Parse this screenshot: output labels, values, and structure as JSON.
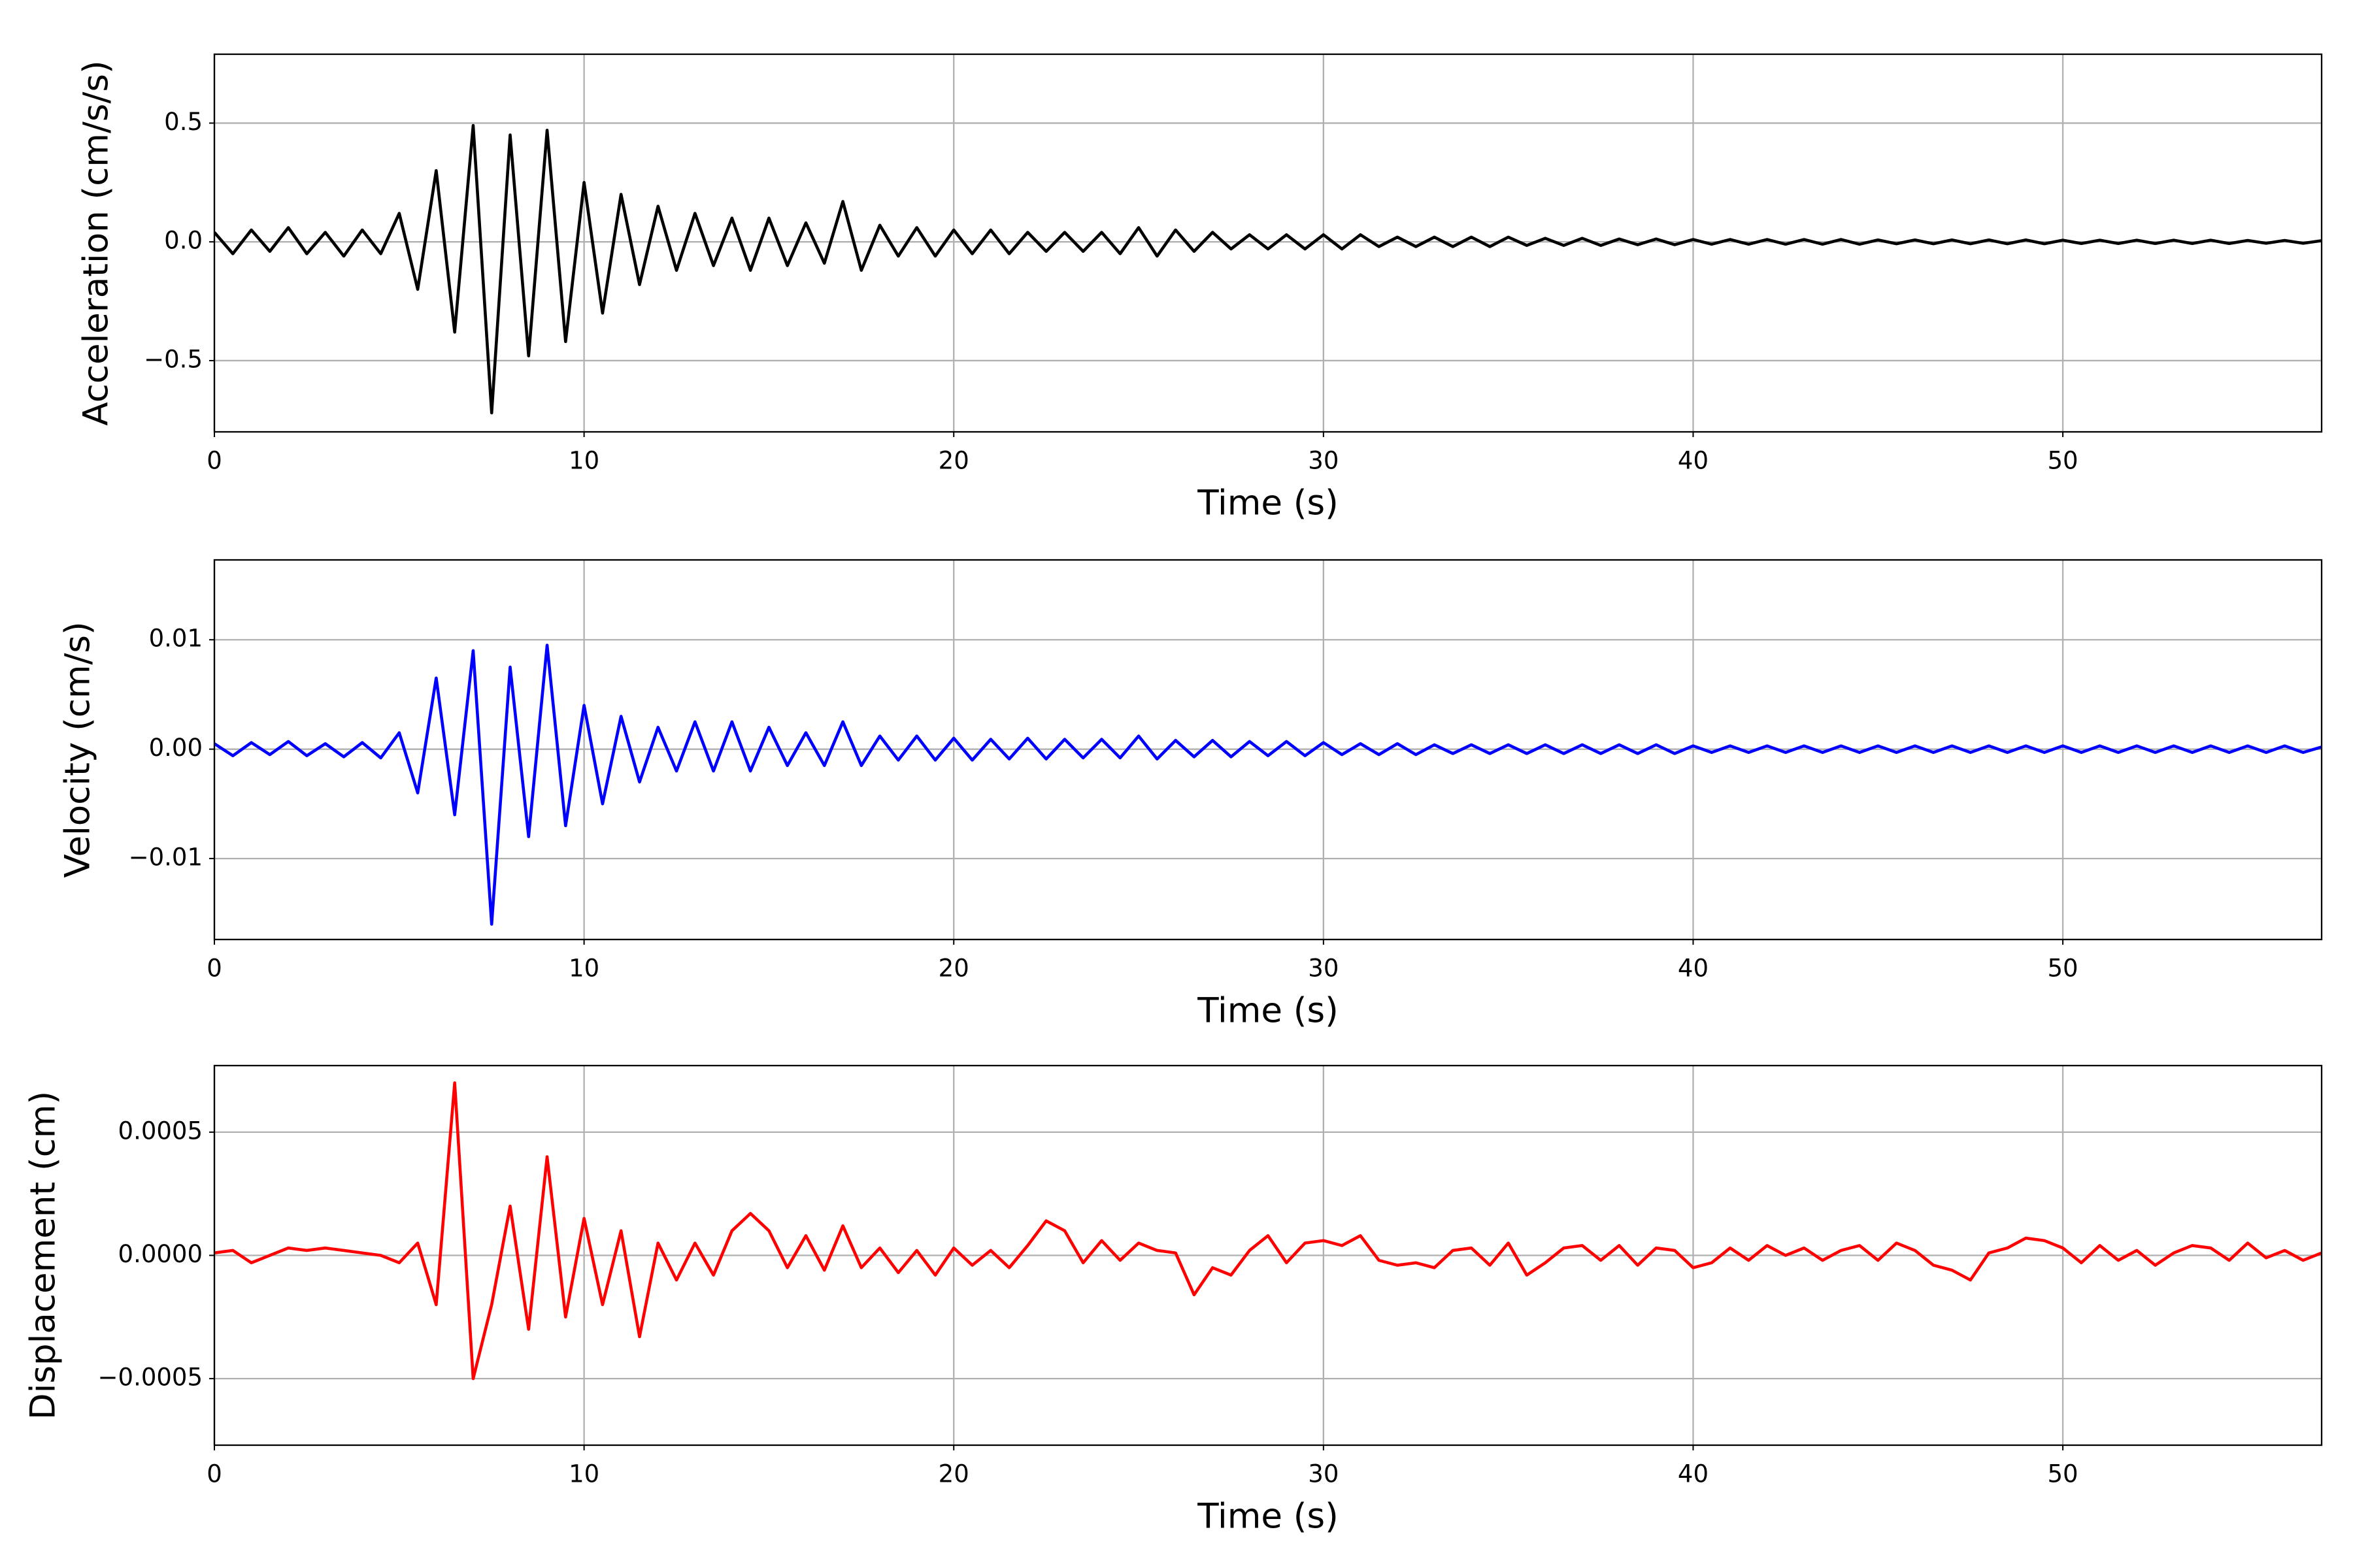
{
  "chart_data": [
    {
      "type": "line",
      "xlabel": "Time (s)",
      "ylabel": "Acceleration (cm/s/s)",
      "color": "#000000",
      "grid": true,
      "xlim": [
        0,
        57
      ],
      "xticks": [
        0,
        10,
        20,
        30,
        40,
        50
      ],
      "ylim": [
        -0.8,
        0.79
      ],
      "yticks": [
        {
          "value": -0.5,
          "label": "−0.5"
        },
        {
          "value": 0,
          "label": "0.0"
        },
        0.5
      ],
      "x": [
        0,
        0.5,
        1,
        1.5,
        2,
        2.5,
        3,
        3.5,
        4,
        4.5,
        5,
        5.5,
        6,
        6.5,
        7,
        7.5,
        8,
        8.5,
        9,
        9.5,
        10,
        10.5,
        11,
        11.5,
        12,
        12.5,
        13,
        13.5,
        14,
        14.5,
        15,
        15.5,
        16,
        16.5,
        17,
        17.5,
        18,
        18.5,
        19,
        19.5,
        20,
        20.5,
        21,
        21.5,
        22,
        22.5,
        23,
        23.5,
        24,
        24.5,
        25,
        25.5,
        26,
        26.5,
        27,
        27.5,
        28,
        28.5,
        29,
        29.5,
        30,
        30.5,
        31,
        31.5,
        32,
        32.5,
        33,
        33.5,
        34,
        34.5,
        35,
        35.5,
        36,
        36.5,
        37,
        37.5,
        38,
        38.5,
        39,
        39.5,
        40,
        40.5,
        41,
        41.5,
        42,
        42.5,
        43,
        43.5,
        44,
        44.5,
        45,
        45.5,
        46,
        46.5,
        47,
        47.5,
        48,
        48.5,
        49,
        49.5,
        50,
        50.5,
        51,
        51.5,
        52,
        52.5,
        53,
        53.5,
        54,
        54.5,
        55,
        55.5,
        56,
        56.5,
        57
      ],
      "values": [
        0.04,
        -0.05,
        0.05,
        -0.04,
        0.06,
        -0.05,
        0.04,
        -0.06,
        0.05,
        -0.05,
        0.12,
        -0.2,
        0.3,
        -0.38,
        0.49,
        -0.72,
        0.45,
        -0.48,
        0.47,
        -0.42,
        0.25,
        -0.3,
        0.2,
        -0.18,
        0.15,
        -0.12,
        0.12,
        -0.1,
        0.1,
        -0.12,
        0.1,
        -0.1,
        0.08,
        -0.09,
        0.17,
        -0.12,
        0.07,
        -0.06,
        0.06,
        -0.06,
        0.05,
        -0.05,
        0.05,
        -0.05,
        0.04,
        -0.04,
        0.04,
        -0.04,
        0.04,
        -0.05,
        0.06,
        -0.06,
        0.05,
        -0.04,
        0.04,
        -0.03,
        0.03,
        -0.03,
        0.03,
        -0.03,
        0.03,
        -0.03,
        0.03,
        -0.02,
        0.02,
        -0.02,
        0.02,
        -0.02,
        0.02,
        -0.02,
        0.02,
        -0.015,
        0.015,
        -0.015,
        0.015,
        -0.015,
        0.012,
        -0.012,
        0.012,
        -0.012,
        0.01,
        -0.01,
        0.01,
        -0.01,
        0.01,
        -0.01,
        0.01,
        -0.01,
        0.01,
        -0.01,
        0.008,
        -0.008,
        0.008,
        -0.008,
        0.008,
        -0.008,
        0.008,
        -0.008,
        0.008,
        -0.008,
        0.007,
        -0.007,
        0.007,
        -0.007,
        0.007,
        -0.007,
        0.007,
        -0.007,
        0.007,
        -0.007,
        0.006,
        -0.006,
        0.006,
        -0.006,
        0.005
      ]
    },
    {
      "type": "line",
      "xlabel": "Time (s)",
      "ylabel": "Velocity (cm/s)",
      "color": "#0000ff",
      "grid": true,
      "xlim": [
        0,
        57
      ],
      "xticks": [
        0,
        10,
        20,
        30,
        40,
        50
      ],
      "ylim": [
        -0.0174,
        0.0173
      ],
      "yticks": [
        {
          "value": -0.01,
          "label": "−0.01"
        },
        {
          "value": 0,
          "label": "0.00"
        },
        0.01
      ],
      "x": [
        0,
        0.5,
        1,
        1.5,
        2,
        2.5,
        3,
        3.5,
        4,
        4.5,
        5,
        5.5,
        6,
        6.5,
        7,
        7.5,
        8,
        8.5,
        9,
        9.5,
        10,
        10.5,
        11,
        11.5,
        12,
        12.5,
        13,
        13.5,
        14,
        14.5,
        15,
        15.5,
        16,
        16.5,
        17,
        17.5,
        18,
        18.5,
        19,
        19.5,
        20,
        20.5,
        21,
        21.5,
        22,
        22.5,
        23,
        23.5,
        24,
        24.5,
        25,
        25.5,
        26,
        26.5,
        27,
        27.5,
        28,
        28.5,
        29,
        29.5,
        30,
        30.5,
        31,
        31.5,
        32,
        32.5,
        33,
        33.5,
        34,
        34.5,
        35,
        35.5,
        36,
        36.5,
        37,
        37.5,
        38,
        38.5,
        39,
        39.5,
        40,
        40.5,
        41,
        41.5,
        42,
        42.5,
        43,
        43.5,
        44,
        44.5,
        45,
        45.5,
        46,
        46.5,
        47,
        47.5,
        48,
        48.5,
        49,
        49.5,
        50,
        50.5,
        51,
        51.5,
        52,
        52.5,
        53,
        53.5,
        54,
        54.5,
        55,
        55.5,
        56,
        56.5,
        57
      ],
      "values": [
        0.0005,
        -0.0006,
        0.0006,
        -0.0005,
        0.0007,
        -0.0006,
        0.0005,
        -0.0007,
        0.0006,
        -0.0008,
        0.0015,
        -0.004,
        0.0065,
        -0.006,
        0.009,
        -0.016,
        0.0075,
        -0.008,
        0.0095,
        -0.007,
        0.004,
        -0.005,
        0.003,
        -0.003,
        0.002,
        -0.002,
        0.0025,
        -0.002,
        0.0025,
        -0.002,
        0.002,
        -0.0015,
        0.0015,
        -0.0015,
        0.0025,
        -0.0015,
        0.0012,
        -0.001,
        0.0012,
        -0.001,
        0.001,
        -0.001,
        0.0009,
        -0.0009,
        0.001,
        -0.0009,
        0.0009,
        -0.0008,
        0.0009,
        -0.0008,
        0.0012,
        -0.0009,
        0.0008,
        -0.0007,
        0.0008,
        -0.0007,
        0.0007,
        -0.0006,
        0.0007,
        -0.0006,
        0.0006,
        -0.0005,
        0.0005,
        -0.0005,
        0.0005,
        -0.0005,
        0.0004,
        -0.0004,
        0.0004,
        -0.0004,
        0.0004,
        -0.0004,
        0.0004,
        -0.0004,
        0.0004,
        -0.0004,
        0.0004,
        -0.0004,
        0.0004,
        -0.0004,
        0.0003,
        -0.0003,
        0.0003,
        -0.0003,
        0.0003,
        -0.0003,
        0.0003,
        -0.0003,
        0.0003,
        -0.0003,
        0.0003,
        -0.0003,
        0.0003,
        -0.0003,
        0.0003,
        -0.0003,
        0.0003,
        -0.0003,
        0.0003,
        -0.0003,
        0.0003,
        -0.0003,
        0.0003,
        -0.0003,
        0.0003,
        -0.0003,
        0.0003,
        -0.0003,
        0.0003,
        -0.0003,
        0.0003,
        -0.0003,
        0.0003,
        -0.0003,
        0.0002
      ]
    },
    {
      "type": "line",
      "xlabel": "Time (s)",
      "ylabel": "Displacement (cm)",
      "color": "#ff0000",
      "grid": true,
      "xlim": [
        0,
        57
      ],
      "xticks": [
        0,
        10,
        20,
        30,
        40,
        50
      ],
      "ylim": [
        -0.00077,
        0.00077
      ],
      "yticks": [
        {
          "value": -0.0005,
          "label": "−0.0005"
        },
        {
          "value": 0,
          "label": "0.0000"
        },
        0.0005
      ],
      "x": [
        0,
        0.5,
        1,
        1.5,
        2,
        2.5,
        3,
        3.5,
        4,
        4.5,
        5,
        5.5,
        6,
        6.5,
        7,
        7.5,
        8,
        8.5,
        9,
        9.5,
        10,
        10.5,
        11,
        11.5,
        12,
        12.5,
        13,
        13.5,
        14,
        14.5,
        15,
        15.5,
        16,
        16.5,
        17,
        17.5,
        18,
        18.5,
        19,
        19.5,
        20,
        20.5,
        21,
        21.5,
        22,
        22.5,
        23,
        23.5,
        24,
        24.5,
        25,
        25.5,
        26,
        26.5,
        27,
        27.5,
        28,
        28.5,
        29,
        29.5,
        30,
        30.5,
        31,
        31.5,
        32,
        32.5,
        33,
        33.5,
        34,
        34.5,
        35,
        35.5,
        36,
        36.5,
        37,
        37.5,
        38,
        38.5,
        39,
        39.5,
        40,
        40.5,
        41,
        41.5,
        42,
        42.5,
        43,
        43.5,
        44,
        44.5,
        45,
        45.5,
        46,
        46.5,
        47,
        47.5,
        48,
        48.5,
        49,
        49.5,
        50,
        50.5,
        51,
        51.5,
        52,
        52.5,
        53,
        53.5,
        54,
        54.5,
        55,
        55.5,
        56,
        56.5,
        57
      ],
      "values": [
        1e-05,
        2e-05,
        -3e-05,
        0.0,
        3e-05,
        2e-05,
        3e-05,
        2e-05,
        1e-05,
        0.0,
        -3e-05,
        5e-05,
        -0.0002,
        0.0007,
        -0.0005,
        -0.0002,
        0.0002,
        -0.0003,
        0.0004,
        -0.00025,
        0.00015,
        -0.0002,
        0.0001,
        -0.00033,
        5e-05,
        -0.0001,
        5e-05,
        -8e-05,
        0.0001,
        0.00017,
        0.0001,
        -5e-05,
        8e-05,
        -6e-05,
        0.00012,
        -5e-05,
        3e-05,
        -7e-05,
        2e-05,
        -8e-05,
        3e-05,
        -4e-05,
        2e-05,
        -5e-05,
        4e-05,
        0.00014,
        0.0001,
        -3e-05,
        6e-05,
        -2e-05,
        5e-05,
        2e-05,
        1e-05,
        -0.00016,
        -5e-05,
        -8e-05,
        2e-05,
        8e-05,
        -3e-05,
        5e-05,
        6e-05,
        4e-05,
        8e-05,
        -2e-05,
        -4e-05,
        -3e-05,
        -5e-05,
        2e-05,
        3e-05,
        -4e-05,
        5e-05,
        -8e-05,
        -3e-05,
        3e-05,
        4e-05,
        -2e-05,
        4e-05,
        -4e-05,
        3e-05,
        2e-05,
        -5e-05,
        -3e-05,
        3e-05,
        -2e-05,
        4e-05,
        0.0,
        3e-05,
        -2e-05,
        2e-05,
        4e-05,
        -2e-05,
        5e-05,
        2e-05,
        -4e-05,
        -6e-05,
        -0.0001,
        1e-05,
        3e-05,
        7e-05,
        6e-05,
        3e-05,
        -3e-05,
        4e-05,
        -2e-05,
        2e-05,
        -4e-05,
        1e-05,
        4e-05,
        3e-05,
        -2e-05,
        5e-05,
        -1e-05,
        2e-05,
        -2e-05,
        1e-05
      ]
    }
  ]
}
